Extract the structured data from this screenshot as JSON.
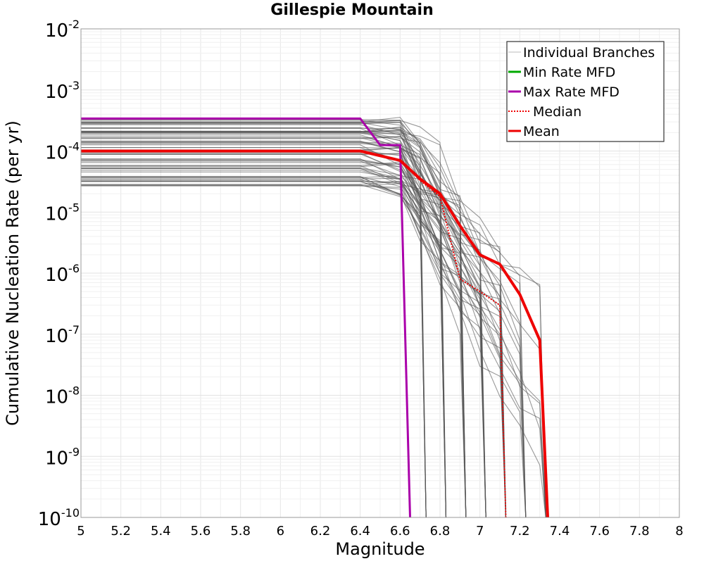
{
  "chart_data": {
    "type": "line",
    "title": "Gillespie Mountain",
    "xlabel": "Magnitude",
    "ylabel": "Cumulative Nucleation Rate (per yr)",
    "xlim": [
      5,
      8
    ],
    "ylim": [
      1e-10,
      0.01
    ],
    "yscale": "log",
    "grid": true,
    "legend_position": "top-right",
    "x_ticks": [
      "5",
      "5.2",
      "5.4",
      "5.6",
      "5.8",
      "6",
      "6.2",
      "6.4",
      "6.6",
      "6.8",
      "7",
      "7.2",
      "7.4",
      "7.6",
      "7.8",
      "8"
    ],
    "y_ticks": [
      {
        "base": "10",
        "exp": "-10"
      },
      {
        "base": "10",
        "exp": "-9"
      },
      {
        "base": "10",
        "exp": "-8"
      },
      {
        "base": "10",
        "exp": "-7"
      },
      {
        "base": "10",
        "exp": "-6"
      },
      {
        "base": "10",
        "exp": "-5"
      },
      {
        "base": "10",
        "exp": "-4"
      },
      {
        "base": "10",
        "exp": "-3"
      },
      {
        "base": "10",
        "exp": "-2"
      }
    ],
    "legend": [
      {
        "label": "Individual Branches",
        "color": "#bbbbbb",
        "style": "solid"
      },
      {
        "label": "Min Rate MFD",
        "color": "#00aa00",
        "style": "solid"
      },
      {
        "label": "Max Rate MFD",
        "color": "#aa00aa",
        "style": "solid"
      },
      {
        "label": "Median",
        "color": "#ee0000",
        "style": "dotted"
      },
      {
        "label": "Mean",
        "color": "#ee0000",
        "style": "solid"
      }
    ],
    "branch_color": "#555555",
    "series": [
      {
        "name": "Max Rate MFD",
        "color": "#aa00aa",
        "x": [
          5.0,
          6.4,
          6.5,
          6.6,
          6.65
        ],
        "y": [
          0.00034,
          0.00034,
          0.000125,
          0.000125,
          1e-10
        ]
      },
      {
        "name": "Median",
        "color": "#ee0000",
        "x": [
          5.0,
          6.4,
          6.6,
          6.7,
          6.8,
          6.9,
          7.0,
          7.1,
          7.13
        ],
        "y": [
          0.0001,
          0.0001,
          7e-05,
          3.3e-05,
          1.8e-05,
          8e-07,
          5e-07,
          3e-07,
          1e-10
        ]
      },
      {
        "name": "Mean",
        "color": "#ee0000",
        "x": [
          5.0,
          6.4,
          6.6,
          6.7,
          6.8,
          6.9,
          7.0,
          7.1,
          7.2,
          7.3,
          7.34
        ],
        "y": [
          0.0001,
          0.0001,
          7e-05,
          3.5e-05,
          2e-05,
          6e-06,
          2e-06,
          1.4e-06,
          4.5e-07,
          8e-08,
          1e-10
        ]
      }
    ]
  }
}
